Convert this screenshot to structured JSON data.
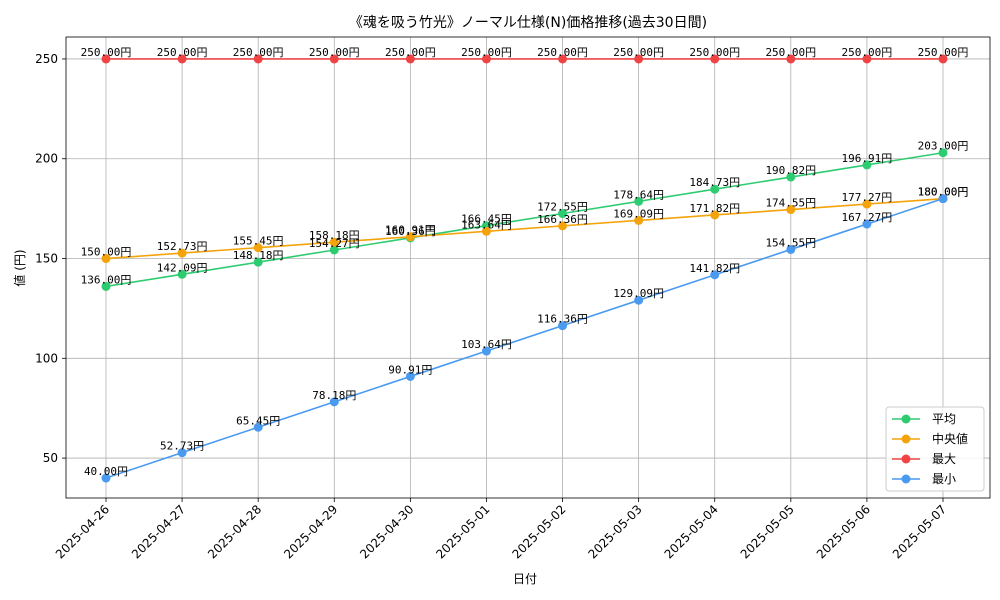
{
  "chart_data": {
    "type": "line",
    "title": "《魂を吸う竹光》ノーマル仕様(N)価格推移(過去30日間)",
    "xlabel": "日付",
    "ylabel": "値 (円)",
    "ylim": [
      30,
      261
    ],
    "yticks": [
      50,
      100,
      150,
      200,
      250
    ],
    "grid": true,
    "legend_position": "lower-right",
    "value_suffix": "円",
    "categories": [
      "2025-04-26",
      "2025-04-27",
      "2025-04-28",
      "2025-04-29",
      "2025-04-30",
      "2025-05-01",
      "2025-05-02",
      "2025-05-03",
      "2025-05-04",
      "2025-05-05",
      "2025-05-06",
      "2025-05-07"
    ],
    "series": [
      {
        "name": "平均",
        "color": "#2ecc71",
        "values": [
          136.0,
          142.09,
          148.18,
          154.27,
          160.36,
          166.45,
          172.55,
          178.64,
          184.73,
          190.82,
          196.91,
          203.0
        ]
      },
      {
        "name": "中央値",
        "color": "#f5a30a",
        "values": [
          150.0,
          152.73,
          155.45,
          158.18,
          160.91,
          163.64,
          166.36,
          169.09,
          171.82,
          174.55,
          177.27,
          180.0
        ]
      },
      {
        "name": "最大",
        "color": "#f04444",
        "values": [
          250.0,
          250.0,
          250.0,
          250.0,
          250.0,
          250.0,
          250.0,
          250.0,
          250.0,
          250.0,
          250.0,
          250.0
        ]
      },
      {
        "name": "最小",
        "color": "#4a9af0",
        "values": [
          40.0,
          52.73,
          65.45,
          78.18,
          90.91,
          103.64,
          116.36,
          129.09,
          141.82,
          154.55,
          167.27,
          180.0
        ]
      }
    ]
  }
}
